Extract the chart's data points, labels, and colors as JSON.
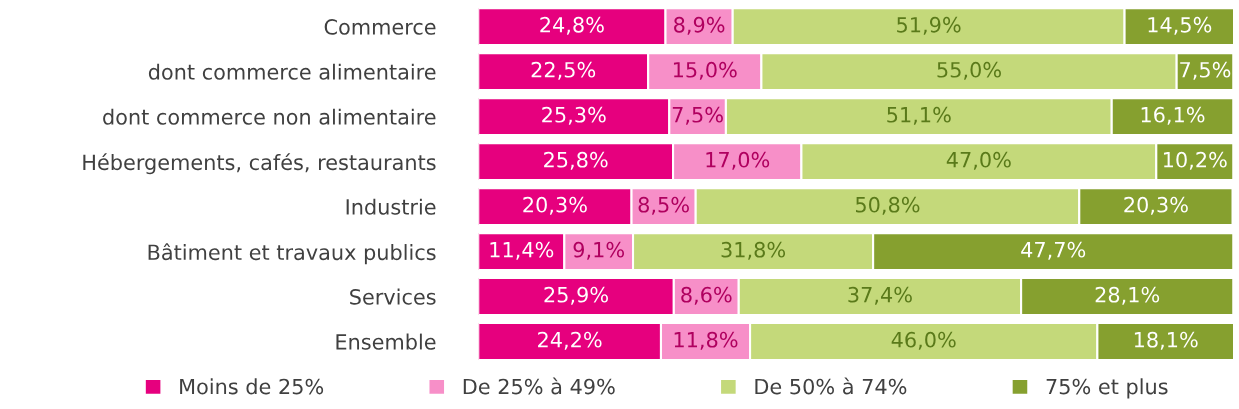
{
  "chart_data": {
    "type": "bar",
    "orientation": "horizontal",
    "stacked": true,
    "legend": "bottom",
    "categories": [
      "Commerce",
      "dont commerce alimentaire",
      "dont commerce non alimentaire",
      "Hébergements, cafés, restaurants",
      "Industrie",
      "Bâtiment et travaux publics",
      "Services",
      "Ensemble"
    ],
    "series": [
      {
        "name": "Moins de 25%",
        "color": "#e6007e",
        "values": [
          24.8,
          22.5,
          25.3,
          25.8,
          20.3,
          11.4,
          25.9,
          24.2
        ],
        "value_labels": [
          "24,8%",
          "22,5%",
          "25,3%",
          "25,8%",
          "20,3%",
          "11,4%",
          "25,9%",
          "24,2%"
        ]
      },
      {
        "name": "De 25% à 49%",
        "color": "#f78fc8",
        "values": [
          8.9,
          15.0,
          7.5,
          17.0,
          8.5,
          9.1,
          8.6,
          11.8
        ],
        "value_labels": [
          "8,9%",
          "15,0%",
          "7,5%",
          "17,0%",
          "8,5%",
          "9,1%",
          "8,6%",
          "11,8%"
        ]
      },
      {
        "name": "De 50% à 74%",
        "color": "#c4d97a",
        "values": [
          51.9,
          55.0,
          51.1,
          47.0,
          50.8,
          31.8,
          37.4,
          46.0
        ],
        "value_labels": [
          "51,9%",
          "55,0%",
          "51,1%",
          "47,0%",
          "50,8%",
          "31,8%",
          "37,4%",
          "46,0%"
        ]
      },
      {
        "name": "75% et plus",
        "color": "#86a02f",
        "values": [
          14.5,
          7.5,
          16.1,
          10.2,
          20.3,
          47.7,
          28.1,
          18.1
        ],
        "value_labels": [
          "14,5%",
          "7,5%",
          "16,1%",
          "10,2%",
          "20,3%",
          "47,7%",
          "28,1%",
          "18,1%"
        ]
      }
    ]
  }
}
